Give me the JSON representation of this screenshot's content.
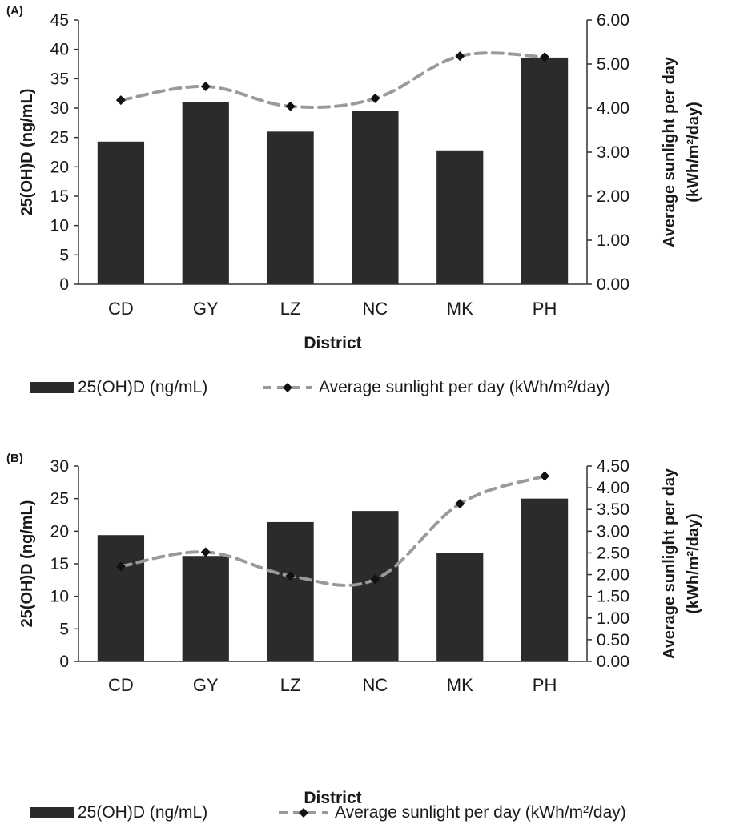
{
  "colors": {
    "bar": "#2b2b2b",
    "line": "#9a9a9a",
    "marker": "#111111",
    "axis": "#333333",
    "text": "#1a1a1a"
  },
  "chart_data": [
    {
      "panel_label": "(A)",
      "type": "bar",
      "categories": [
        "CD",
        "GY",
        "LZ",
        "NC",
        "MK",
        "PH"
      ],
      "xlabel": "District",
      "ylabel": "25(OH)D (ng/mL)",
      "y2label_line1": "Average sunlight per day",
      "y2label_line2": "(kWh/m²/day)",
      "ylim": [
        0,
        45
      ],
      "yticks": [
        "0",
        "5",
        "10",
        "15",
        "20",
        "25",
        "30",
        "35",
        "40",
        "45"
      ],
      "y2lim": [
        0,
        6
      ],
      "y2ticks": [
        "0.00",
        "1.00",
        "2.00",
        "3.00",
        "4.00",
        "5.00",
        "6.00"
      ],
      "series": [
        {
          "name": "25(OH)D (ng/mL)",
          "type": "bar",
          "axis": "left",
          "values": [
            24.3,
            31.0,
            26.0,
            29.5,
            22.8,
            38.6
          ]
        },
        {
          "name": "Average sunlight per day (kWh/m²/day)",
          "type": "line",
          "axis": "right",
          "style": "dashed",
          "marker": "diamond",
          "values": [
            4.18,
            4.49,
            4.04,
            4.22,
            5.18,
            5.16
          ]
        }
      ],
      "grid": false,
      "legend_position": "bottom"
    },
    {
      "panel_label": "(B)",
      "type": "bar",
      "categories": [
        "CD",
        "GY",
        "LZ",
        "NC",
        "MK",
        "PH"
      ],
      "xlabel": "District",
      "ylabel": "25(OH)D (ng/mL)",
      "y2label_line1": "Average sunlight per day",
      "y2label_line2": "(kWh/m²/day)",
      "ylim": [
        0,
        30
      ],
      "yticks": [
        "0",
        "5",
        "10",
        "15",
        "20",
        "25",
        "30"
      ],
      "y2lim": [
        0,
        4.5
      ],
      "y2ticks": [
        "0.00",
        "0.50",
        "1.00",
        "1.50",
        "2.00",
        "2.50",
        "3.00",
        "3.50",
        "4.00",
        "4.50"
      ],
      "series": [
        {
          "name": "25(OH)D (ng/mL)",
          "type": "bar",
          "axis": "left",
          "values": [
            19.4,
            16.2,
            21.4,
            23.1,
            16.6,
            25.0
          ]
        },
        {
          "name": "Average sunlight per day (kWh/m²/day)",
          "type": "line",
          "axis": "right",
          "style": "dashed",
          "marker": "diamond",
          "values": [
            2.19,
            2.52,
            1.97,
            1.89,
            3.63,
            4.27
          ]
        }
      ],
      "grid": false,
      "legend_position": "bottom"
    }
  ]
}
